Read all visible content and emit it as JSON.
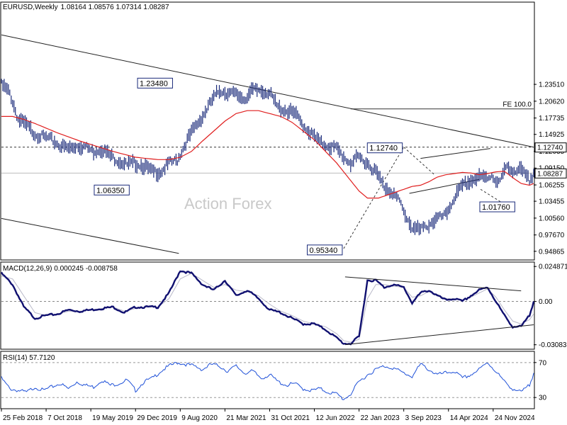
{
  "header": {
    "symbol": "EURUSD,Weekly",
    "ohlc": "1.08164 1.08576 1.07314 1.08287",
    "macd": "MACD(12,26,9) 0.000245 -0.008758",
    "rsi": "RSI(14) 57.7120"
  },
  "watermark": "Action Forex",
  "colors": {
    "price": "#1a2a7a",
    "ma": "#e01f1f",
    "macd": "#101070",
    "signal": "#b8b8c8",
    "rsi": "#1e50d8",
    "trendline": "#222222",
    "frame": "#000000"
  },
  "chart_data": [
    {
      "type": "line",
      "panel": "price",
      "ylim": [
        0.935,
        1.375
      ],
      "yticks": [
        "1.23510",
        "1.20620",
        "1.17735",
        "1.14925",
        "1.12035",
        "1.09150",
        "1.06255",
        "1.03455",
        "1.00560",
        "0.97670",
        "0.94865"
      ],
      "ytick_values": [
        1.2351,
        1.2062,
        1.17735,
        1.14925,
        1.12035,
        1.0915,
        1.06255,
        1.03455,
        1.0056,
        0.9767,
        0.94865
      ],
      "xticks": [
        "25 Feb 2018",
        "7 Oct 2018",
        "19 May 2019",
        "29 Dec 2019",
        "9 Aug 2020",
        "21 Mar 2021",
        "31 Oct 2021",
        "12 Jun 2022",
        "22 Jan 2023",
        "3 Sep 2023",
        "14 Apr 2024",
        "24 Nov 2024"
      ],
      "current_price": "1.08287",
      "current_value": 1.08287,
      "level_line": "1.12740",
      "level_value": 1.1274,
      "fe_label": "FE 100.0",
      "fe_value": 1.193,
      "annotations": [
        {
          "label": "1.23480",
          "week": 123,
          "value": 1.2348
        },
        {
          "label": "1.06350",
          "week": 92,
          "value": 1.0635
        },
        {
          "label": "0.95340",
          "week": 245,
          "value": 0.9534
        },
        {
          "label": "1.12740",
          "week": 288,
          "value": 1.1274
        },
        {
          "label": "1.01760",
          "week": 368,
          "value": 1.0176
        }
      ],
      "x": [
        0,
        6,
        12,
        18,
        24,
        30,
        36,
        42,
        48,
        54,
        60,
        66,
        72,
        78,
        84,
        90,
        96,
        102,
        108,
        114,
        120,
        126,
        132,
        138,
        144,
        150,
        156,
        162,
        168,
        174,
        180,
        186,
        192,
        198,
        204,
        210,
        216,
        222,
        228,
        234,
        240,
        245,
        250,
        256,
        262,
        268,
        274,
        280,
        286,
        288,
        294,
        300,
        306,
        312,
        318,
        324,
        330,
        336,
        342,
        348,
        351,
        356,
        362,
        368,
        372,
        378,
        381
      ],
      "values": [
        1.235,
        1.22,
        1.175,
        1.165,
        1.15,
        1.145,
        1.14,
        1.13,
        1.125,
        1.13,
        1.128,
        1.12,
        1.125,
        1.112,
        1.104,
        1.097,
        1.1,
        1.095,
        1.085,
        1.085,
        1.1,
        1.105,
        1.135,
        1.16,
        1.18,
        1.205,
        1.225,
        1.22,
        1.218,
        1.21,
        1.225,
        1.225,
        1.22,
        1.195,
        1.19,
        1.185,
        1.165,
        1.15,
        1.135,
        1.13,
        1.125,
        1.11,
        1.1,
        1.11,
        1.1,
        1.085,
        1.06,
        1.05,
        1.03,
        1.015,
        0.99,
        0.985,
        0.995,
        1.005,
        1.01,
        1.04,
        1.06,
        1.07,
        1.075,
        1.075,
        1.08,
        1.065,
        1.095,
        1.085,
        1.088,
        1.07,
        1.083
      ],
      "series": [
        {
          "name": "",
          "x": [
            0,
            8,
            16,
            24,
            32,
            40,
            48,
            56,
            64,
            72,
            80,
            88,
            96,
            104,
            112,
            120,
            128,
            136,
            144,
            152,
            160,
            168,
            176,
            184,
            192,
            200,
            208,
            216,
            224,
            232,
            240,
            245,
            250,
            256,
            262,
            270,
            276,
            282,
            288,
            294,
            300,
            306,
            312,
            318,
            324,
            330,
            336,
            342,
            348,
            354,
            360,
            366,
            372,
            378,
            381
          ],
          "values": [
            1.18,
            1.18,
            1.175,
            1.168,
            1.16,
            1.152,
            1.145,
            1.138,
            1.132,
            1.126,
            1.12,
            1.115,
            1.11,
            1.108,
            1.106,
            1.106,
            1.11,
            1.12,
            1.138,
            1.155,
            1.172,
            1.185,
            1.19,
            1.19,
            1.185,
            1.18,
            1.17,
            1.155,
            1.14,
            1.12,
            1.1,
            1.085,
            1.07,
            1.052,
            1.04,
            1.04,
            1.045,
            1.05,
            1.055,
            1.06,
            1.062,
            1.068,
            1.076,
            1.08,
            1.082,
            1.084,
            1.083,
            1.08,
            1.082,
            1.085,
            1.086,
            1.075,
            1.065,
            1.062,
            1.065
          ]
        }
      ],
      "trendlines": [
        {
          "from": [
            0,
            1.32
          ],
          "to": [
            381,
            1.1274
          ]
        },
        {
          "from": [
            0,
            1.005
          ],
          "to": [
            127,
            0.945
          ]
        },
        {
          "from": [
            300,
            1.108
          ],
          "to": [
            350,
            1.125
          ]
        },
        {
          "from": [
            292,
            1.048
          ],
          "to": [
            342,
            1.072
          ]
        }
      ],
      "dashed_lines": [
        {
          "from": [
            245,
            0.9534
          ],
          "to": [
            288,
            1.1274
          ]
        },
        {
          "from": [
            288,
            1.1274
          ],
          "to": [
            310,
            1.08
          ]
        },
        {
          "from": [
            343,
            1.055
          ],
          "to": [
            368,
            1.0176
          ]
        }
      ]
    },
    {
      "type": "line",
      "panel": "macd",
      "ylim": [
        -0.0335,
        0.0275
      ],
      "yticks": [
        "0.024871",
        "0.00",
        "-0.030836"
      ],
      "ytick_values": [
        0.024871,
        0.0,
        -0.030836
      ],
      "series": [
        {
          "name": "",
          "x": [
            0,
            8,
            16,
            24,
            32,
            40,
            48,
            56,
            64,
            72,
            80,
            88,
            96,
            104,
            112,
            120,
            128,
            136,
            144,
            152,
            160,
            168,
            176,
            184,
            192,
            200,
            208,
            216,
            224,
            232,
            240,
            245,
            250,
            256,
            262,
            268,
            274,
            280,
            288,
            294,
            300,
            306,
            312,
            318,
            324,
            330,
            336,
            342,
            348,
            354,
            360,
            366,
            372,
            378,
            381
          ],
          "values": [
            0.02,
            0.012,
            -0.004,
            -0.012,
            -0.01,
            -0.009,
            -0.006,
            -0.007,
            -0.006,
            -0.005,
            -0.004,
            -0.008,
            -0.004,
            -0.004,
            -0.004,
            0.006,
            0.022,
            0.02,
            0.012,
            0.008,
            0.015,
            0.004,
            0.008,
            0.002,
            -0.006,
            -0.008,
            -0.012,
            -0.016,
            -0.016,
            -0.02,
            -0.026,
            -0.03,
            -0.03,
            -0.025,
            0.015,
            0.015,
            0.01,
            0.012,
            0.01,
            -0.001,
            0.006,
            0.008,
            0.004,
            0.001,
            0.002,
            0.0,
            0.004,
            0.008,
            0.01,
            0.0,
            -0.01,
            -0.018,
            -0.018,
            -0.01,
            0.0
          ]
        },
        {
          "name": "",
          "x": [
            0,
            8,
            16,
            24,
            32,
            40,
            48,
            56,
            64,
            72,
            80,
            88,
            96,
            104,
            112,
            120,
            128,
            136,
            144,
            152,
            160,
            168,
            176,
            184,
            192,
            200,
            208,
            216,
            224,
            232,
            240,
            245,
            250,
            256,
            262,
            268,
            274,
            280,
            288,
            294,
            300,
            306,
            312,
            318,
            324,
            330,
            336,
            342,
            348,
            354,
            360,
            366,
            372,
            378,
            381
          ],
          "values": [
            0.018,
            0.016,
            0.004,
            -0.008,
            -0.01,
            -0.009,
            -0.007,
            -0.007,
            -0.006,
            -0.005,
            -0.004,
            -0.007,
            -0.005,
            -0.004,
            -0.004,
            0.002,
            0.016,
            0.02,
            0.015,
            0.01,
            0.012,
            0.008,
            0.007,
            0.004,
            -0.002,
            -0.007,
            -0.01,
            -0.014,
            -0.016,
            -0.018,
            -0.023,
            -0.028,
            -0.029,
            -0.027,
            0.002,
            0.012,
            0.012,
            0.011,
            0.01,
            0.003,
            0.004,
            0.007,
            0.005,
            0.002,
            0.002,
            0.001,
            0.003,
            0.006,
            0.009,
            0.003,
            -0.006,
            -0.014,
            -0.016,
            -0.013,
            -0.009
          ]
        }
      ],
      "trendlines": [
        {
          "from": [
            246,
            0.0175
          ],
          "to": [
            372,
            0.0075
          ]
        },
        {
          "from": [
            246,
            -0.0308
          ],
          "to": [
            381,
            -0.0166
          ]
        }
      ]
    },
    {
      "type": "line",
      "panel": "rsi",
      "ylim": [
        18,
        82
      ],
      "yticks": [
        "70",
        "30"
      ],
      "ytick_values": [
        70,
        30
      ],
      "series": [
        {
          "name": "",
          "x": [
            0,
            6,
            12,
            18,
            24,
            30,
            36,
            42,
            48,
            54,
            60,
            66,
            72,
            78,
            84,
            90,
            96,
            102,
            108,
            114,
            120,
            126,
            132,
            138,
            144,
            150,
            156,
            162,
            168,
            174,
            180,
            186,
            192,
            198,
            204,
            210,
            216,
            222,
            228,
            234,
            240,
            245,
            250,
            256,
            262,
            268,
            274,
            280,
            288,
            294,
            300,
            306,
            312,
            318,
            324,
            330,
            336,
            342,
            348,
            354,
            360,
            366,
            372,
            378,
            381
          ],
          "values": [
            52,
            40,
            38,
            36,
            42,
            38,
            42,
            46,
            40,
            48,
            44,
            42,
            50,
            44,
            46,
            50,
            38,
            48,
            52,
            60,
            66,
            70,
            68,
            66,
            62,
            68,
            66,
            60,
            66,
            58,
            60,
            52,
            56,
            48,
            44,
            46,
            40,
            38,
            40,
            36,
            34,
            28,
            34,
            48,
            56,
            62,
            66,
            64,
            58,
            54,
            68,
            62,
            56,
            58,
            60,
            52,
            56,
            62,
            70,
            60,
            48,
            40,
            36,
            44,
            58
          ]
        }
      ],
      "levels": [
        70,
        30
      ]
    }
  ]
}
